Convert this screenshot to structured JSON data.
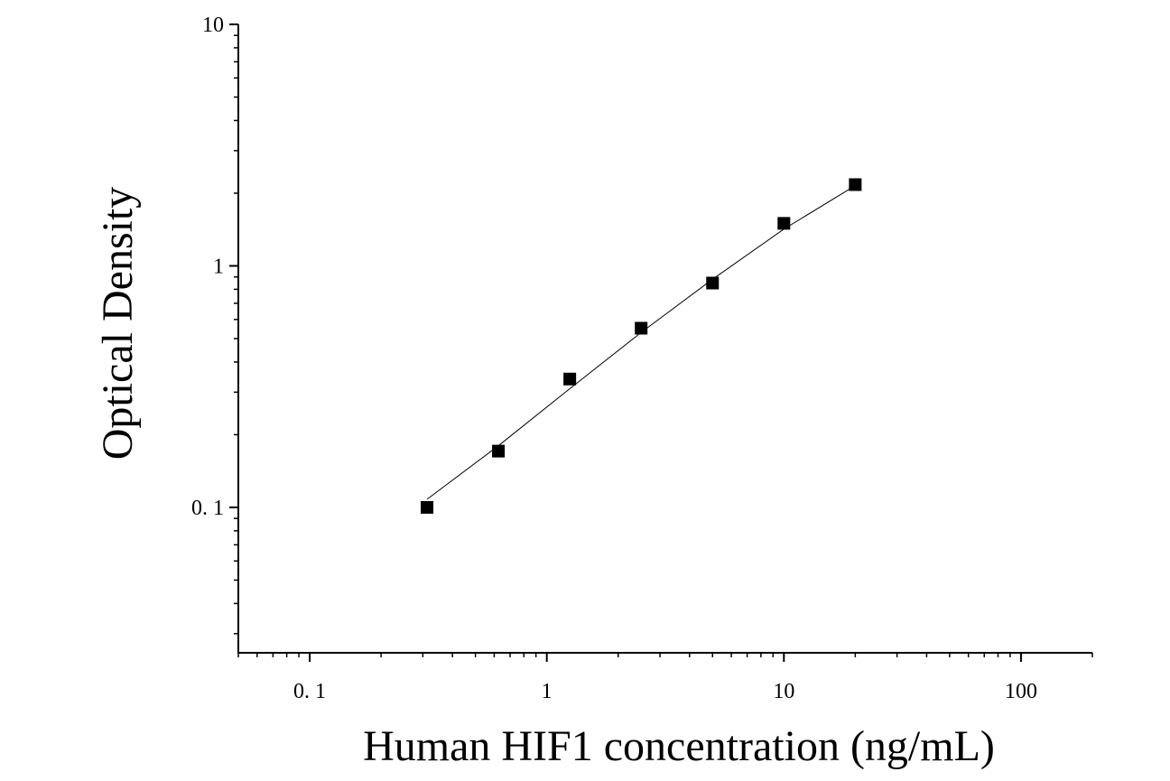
{
  "chart_data": {
    "type": "scatter",
    "x_label": "Human HIF1 concentration (ng/mL)",
    "y_label": "Optical Density",
    "x": [
      0.3125,
      0.625,
      1.25,
      2.5,
      5,
      10,
      20
    ],
    "series": [
      {
        "color": "#000000",
        "marker": "square",
        "values": [
          0.1,
          0.171,
          0.34,
          0.552,
          0.849,
          1.5,
          2.17
        ]
      },
      {
        "color": "#000000",
        "marker": "line",
        "values": [
          0.108,
          0.18,
          0.31,
          0.53,
          0.88,
          1.42,
          2.15
        ]
      }
    ],
    "log_x": true,
    "log_y": true,
    "xlim": [
      0.05,
      200
    ],
    "ylim": [
      0.025,
      10
    ],
    "xticks": [
      {
        "value": 0.1,
        "label": "0. 1"
      },
      1,
      10,
      100
    ],
    "yticks": [
      {
        "value": 0.1,
        "label": "0. 1"
      },
      1,
      10
    ]
  }
}
